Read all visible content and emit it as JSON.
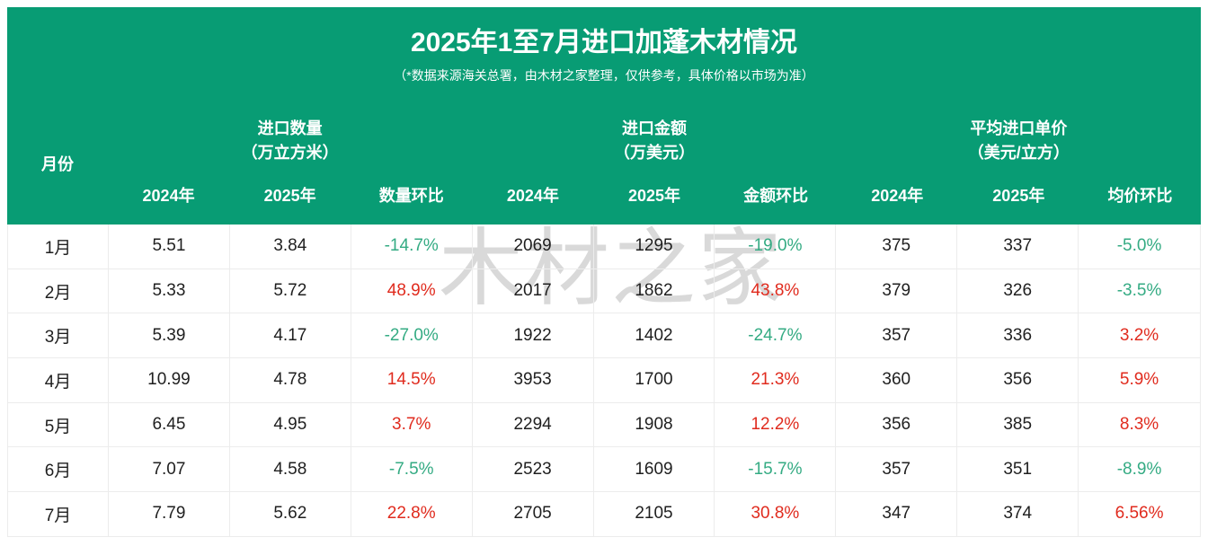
{
  "title": "2025年1至7月进口加蓬木材情况",
  "subtitle": "（*数据来源海关总署，由木材之家整理，仅供参考，具体价格以市场为准）",
  "watermark": "木材之家",
  "colors": {
    "header_green": "#089c74",
    "decline_green": "#34ab83",
    "increase_red": "#e02b1e",
    "watermark_gray": "#d9d9d9",
    "grid_border": "#ececec"
  },
  "table": {
    "month_header": "月份",
    "groups": [
      {
        "name": "进口数量",
        "unit": "（万立方米）",
        "cols": [
          "2024年",
          "2025年",
          "数量环比"
        ]
      },
      {
        "name": "进口金额",
        "unit": "（万美元）",
        "cols": [
          "2024年",
          "2025年",
          "金额环比"
        ]
      },
      {
        "name": "平均进口单价",
        "unit": "（美元/立方）",
        "cols": [
          "2024年",
          "2025年",
          "均价环比"
        ]
      }
    ],
    "rows": [
      {
        "month": "1月",
        "cells": [
          "5.51",
          "3.84",
          "-14.7%",
          "2069",
          "1295",
          "-19.0%",
          "375",
          "337",
          "-5.0%"
        ]
      },
      {
        "month": "2月",
        "cells": [
          "5.33",
          "5.72",
          "48.9%",
          "2017",
          "1862",
          "43.8%",
          "379",
          "326",
          "-3.5%"
        ]
      },
      {
        "month": "3月",
        "cells": [
          "5.39",
          "4.17",
          "-27.0%",
          "1922",
          "1402",
          "-24.7%",
          "357",
          "336",
          "3.2%"
        ]
      },
      {
        "month": "4月",
        "cells": [
          "10.99",
          "4.78",
          "14.5%",
          "3953",
          "1700",
          "21.3%",
          "360",
          "356",
          "5.9%"
        ]
      },
      {
        "month": "5月",
        "cells": [
          "6.45",
          "4.95",
          "3.7%",
          "2294",
          "1908",
          "12.2%",
          "356",
          "385",
          "8.3%"
        ]
      },
      {
        "month": "6月",
        "cells": [
          "7.07",
          "4.58",
          "-7.5%",
          "2523",
          "1609",
          "-15.7%",
          "357",
          "351",
          "-8.9%"
        ]
      },
      {
        "month": "7月",
        "cells": [
          "7.79",
          "5.62",
          "22.8%",
          "2705",
          "2105",
          "30.8%",
          "347",
          "374",
          "6.56%"
        ]
      }
    ]
  },
  "chart_data": {
    "type": "table",
    "title": "2025年1至7月进口加蓬木材情况",
    "subtitle": "（*数据来源海关总署，由木材之家整理，仅供参考，具体价格以市场为准）",
    "categories": [
      "1月",
      "2月",
      "3月",
      "4月",
      "5月",
      "6月",
      "7月"
    ],
    "series": [
      {
        "name": "进口数量 2024年（万立方米）",
        "values": [
          5.51,
          5.33,
          5.39,
          10.99,
          6.45,
          7.07,
          7.79
        ]
      },
      {
        "name": "进口数量 2025年（万立方米）",
        "values": [
          3.84,
          5.72,
          4.17,
          4.78,
          4.95,
          4.58,
          5.62
        ]
      },
      {
        "name": "数量环比",
        "values": [
          "-14.7%",
          "48.9%",
          "-27.0%",
          "14.5%",
          "3.7%",
          "-7.5%",
          "22.8%"
        ]
      },
      {
        "name": "进口金额 2024年（万美元）",
        "values": [
          2069,
          2017,
          1922,
          3953,
          2294,
          2523,
          2705
        ]
      },
      {
        "name": "进口金额 2025年（万美元）",
        "values": [
          1295,
          1862,
          1402,
          1700,
          1908,
          1609,
          2105
        ]
      },
      {
        "name": "金额环比",
        "values": [
          "-19.0%",
          "43.8%",
          "-24.7%",
          "21.3%",
          "12.2%",
          "-15.7%",
          "30.8%"
        ]
      },
      {
        "name": "平均进口单价 2024年（美元/立方）",
        "values": [
          375,
          379,
          357,
          360,
          356,
          357,
          347
        ]
      },
      {
        "name": "平均进口单价 2025年（美元/立方）",
        "values": [
          337,
          326,
          336,
          356,
          385,
          351,
          374
        ]
      },
      {
        "name": "均价环比",
        "values": [
          "-5.0%",
          "-3.5%",
          "3.2%",
          "5.9%",
          "8.3%",
          "-8.9%",
          "6.56%"
        ]
      }
    ],
    "legend_position": "none",
    "grid": true,
    "note": "negative MoM values shown in green, positive in red"
  }
}
